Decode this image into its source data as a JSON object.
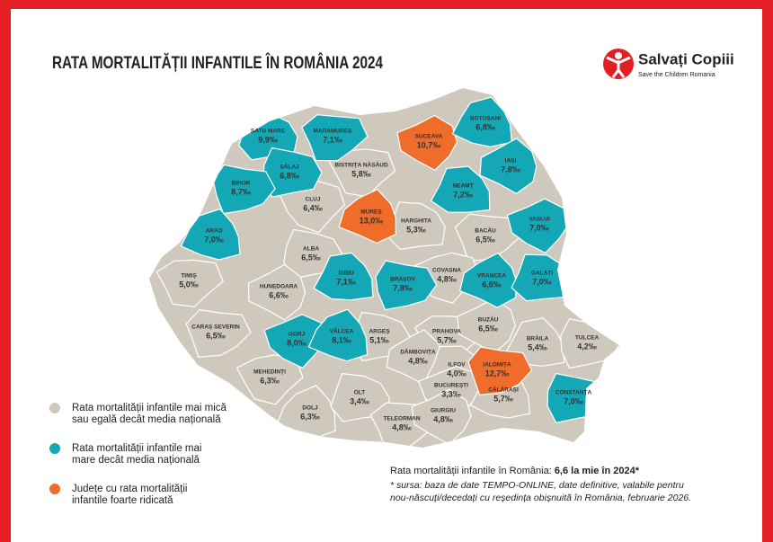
{
  "header": {
    "title": "RATA MORTALITĂȚII INFANTILE ÎN ROMÂNIA 2024",
    "logo": {
      "name": "Salvați Copiii",
      "tagline": "Save the Children Romania"
    }
  },
  "map": {
    "counties": [
      {
        "name": "SATU MARE",
        "value": "9,9‰",
        "color": "#14a7b5"
      },
      {
        "name": "MARAMUREȘ",
        "value": "7,1‰",
        "color": "#14a7b5"
      },
      {
        "name": "SUCEAVA",
        "value": "10,7‰",
        "color": "#ef6c2a"
      },
      {
        "name": "BOTOȘANI",
        "value": "6,8‰",
        "color": "#14a7b5"
      },
      {
        "name": "SĂLAJ",
        "value": "6,8‰",
        "color": "#14a7b5"
      },
      {
        "name": "BISTRIȚA NĂSĂUD",
        "value": "5,8‰",
        "color": "#cfc8bd"
      },
      {
        "name": "IAȘI",
        "value": "7,8‰",
        "color": "#14a7b5"
      },
      {
        "name": "NEAMȚ",
        "value": "7,2‰",
        "color": "#14a7b5"
      },
      {
        "name": "BIHOR",
        "value": "8,7‰",
        "color": "#14a7b5"
      },
      {
        "name": "CLUJ",
        "value": "6,4‰",
        "color": "#cfc8bd"
      },
      {
        "name": "MUREȘ",
        "value": "13,0‰",
        "color": "#ef6c2a"
      },
      {
        "name": "HARGHITA",
        "value": "5,3‰",
        "color": "#cfc8bd"
      },
      {
        "name": "BACĂU",
        "value": "6,5‰",
        "color": "#cfc8bd"
      },
      {
        "name": "VASLUI",
        "value": "7,0‰",
        "color": "#14a7b5"
      },
      {
        "name": "ARAD",
        "value": "7,0‰",
        "color": "#14a7b5"
      },
      {
        "name": "ALBA",
        "value": "6,5‰",
        "color": "#cfc8bd"
      },
      {
        "name": "TIMIȘ",
        "value": "5,0‰",
        "color": "#cfc8bd"
      },
      {
        "name": "HUNEDOARA",
        "value": "6,6‰",
        "color": "#cfc8bd"
      },
      {
        "name": "SIBIU",
        "value": "7,1‰",
        "color": "#14a7b5"
      },
      {
        "name": "BRAȘOV",
        "value": "7,8‰",
        "color": "#14a7b5"
      },
      {
        "name": "COVASNA",
        "value": "4,8‰",
        "color": "#cfc8bd"
      },
      {
        "name": "VRANCEA",
        "value": "6,8‰",
        "color": "#14a7b5"
      },
      {
        "name": "GALAȚI",
        "value": "7,0‰",
        "color": "#14a7b5"
      },
      {
        "name": "CARAȘ SEVERIN",
        "value": "6,5‰",
        "color": "#cfc8bd"
      },
      {
        "name": "GORJ",
        "value": "8,0‰",
        "color": "#14a7b5"
      },
      {
        "name": "VÂLCEA",
        "value": "8,1‰",
        "color": "#14a7b5"
      },
      {
        "name": "ARGEȘ",
        "value": "5,1‰",
        "color": "#cfc8bd"
      },
      {
        "name": "PRAHOVA",
        "value": "5,7‰",
        "color": "#cfc8bd"
      },
      {
        "name": "BUZĂU",
        "value": "6,5‰",
        "color": "#cfc8bd"
      },
      {
        "name": "BRĂILA",
        "value": "5,4‰",
        "color": "#cfc8bd"
      },
      {
        "name": "TULCEA",
        "value": "4,2‰",
        "color": "#cfc8bd"
      },
      {
        "name": "MEHEDINȚI",
        "value": "6,3‰",
        "color": "#cfc8bd"
      },
      {
        "name": "DÂMBOVIȚA",
        "value": "4,8‰",
        "color": "#cfc8bd"
      },
      {
        "name": "ILFOV",
        "value": "4,0‰",
        "color": "#cfc8bd"
      },
      {
        "name": "IALOMIȚA",
        "value": "12,7‰",
        "color": "#ef6c2a"
      },
      {
        "name": "BUCUREȘTI",
        "value": "3,3‰",
        "color": "#cfc8bd"
      },
      {
        "name": "DOLJ",
        "value": "6,3‰",
        "color": "#cfc8bd"
      },
      {
        "name": "OLT",
        "value": "3,4‰",
        "color": "#cfc8bd"
      },
      {
        "name": "TELEORMAN",
        "value": "4,8‰",
        "color": "#cfc8bd"
      },
      {
        "name": "GIURGIU",
        "value": "4,8‰",
        "color": "#cfc8bd"
      },
      {
        "name": "CĂLĂRAȘI",
        "value": "5,7‰",
        "color": "#cfc8bd"
      },
      {
        "name": "CONSTANȚA",
        "value": "7,0‰",
        "color": "#14a7b5"
      }
    ]
  },
  "legend": [
    {
      "lines": [
        "Rata mortalității infantile mai mică",
        "sau egală decât media națională"
      ],
      "color": "#cfc8bd"
    },
    {
      "lines": [
        "Rata mortalității infantile mai",
        "mare decât media națională"
      ],
      "color": "#14a7b5"
    },
    {
      "lines": [
        "Județe cu rata mortalității",
        "infantile foarte ridicată"
      ],
      "color": "#ef6c2a"
    }
  ],
  "note": {
    "text": "Rata mortalității infantile în România: ",
    "highlight": "6,6 la mie în 2024*",
    "source": [
      "* sursa: baza de date TEMPO-ONLINE, date definitive, valabile pentru",
      "nou-născuți/decedați cu reședința obișnuită în România, februarie 2026."
    ]
  }
}
